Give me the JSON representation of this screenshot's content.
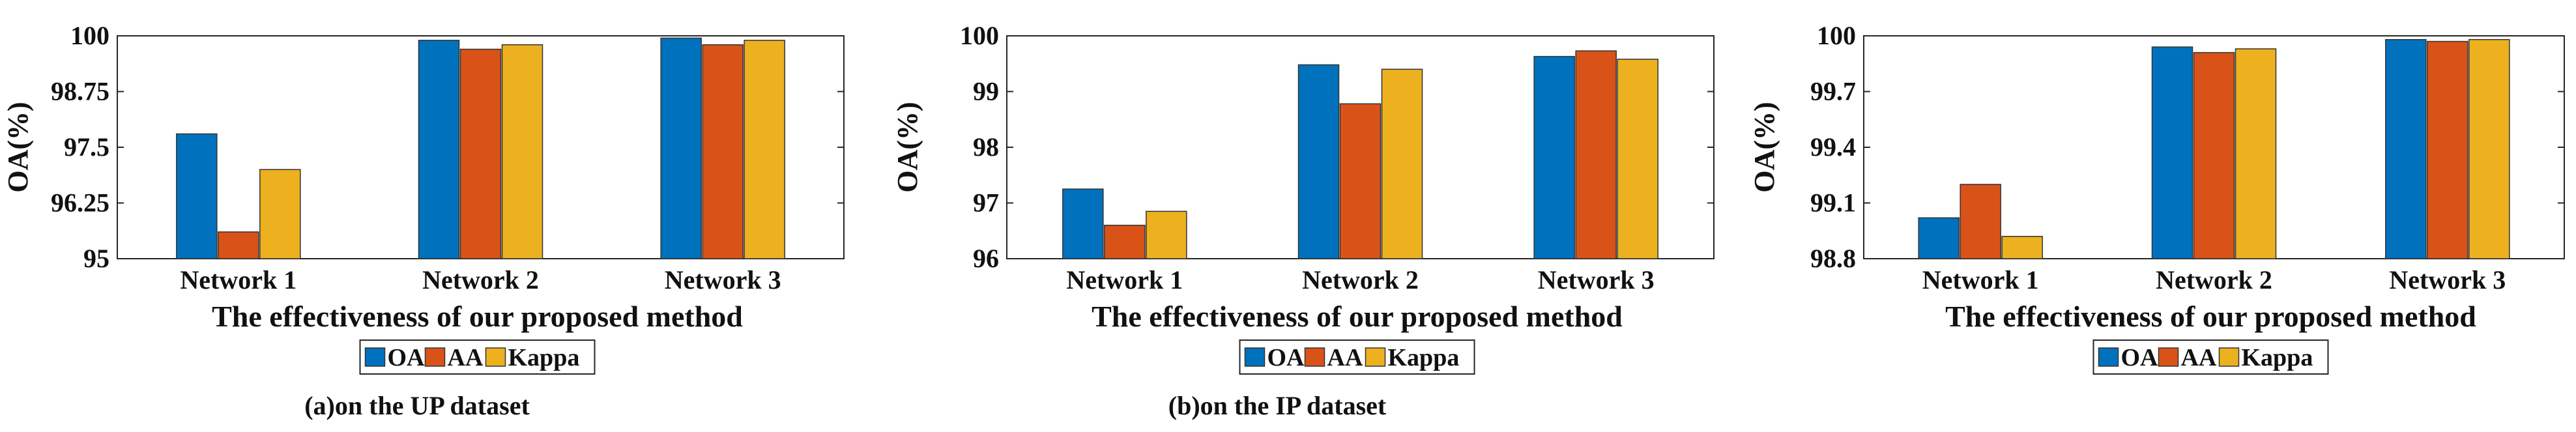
{
  "chart_data": [
    {
      "type": "bar",
      "categories": [
        "Network 1",
        "Network 2",
        "Network 3"
      ],
      "series": [
        {
          "name": "OA",
          "values": [
            97.8,
            99.9,
            99.95
          ]
        },
        {
          "name": "AA",
          "values": [
            95.6,
            99.7,
            99.8
          ]
        },
        {
          "name": "Kappa",
          "values": [
            97.0,
            99.8,
            99.9
          ]
        }
      ],
      "colors": [
        "#0072BD",
        "#D95319",
        "#EDB120"
      ],
      "ylim": [
        95,
        100
      ],
      "yticks": [
        "95",
        "96.25",
        "97.5",
        "98.75",
        "100"
      ],
      "ylabel": "OA(%)",
      "xlabel": "The effectiveness of our proposed method",
      "caption": "(a)on the UP dataset",
      "legend_position": "bottom"
    },
    {
      "type": "bar",
      "categories": [
        "Network 1",
        "Network 2",
        "Network 3"
      ],
      "series": [
        {
          "name": "OA",
          "values": [
            97.25,
            99.48,
            99.63
          ]
        },
        {
          "name": "AA",
          "values": [
            96.6,
            98.78,
            99.73
          ]
        },
        {
          "name": "Kappa",
          "values": [
            96.85,
            99.4,
            99.58
          ]
        }
      ],
      "colors": [
        "#0072BD",
        "#D95319",
        "#EDB120"
      ],
      "ylim": [
        96,
        100
      ],
      "yticks": [
        "96",
        "97",
        "98",
        "99",
        "100"
      ],
      "ylabel": "OA(%)",
      "xlabel": "The effectiveness of our proposed method",
      "caption": "(b)on the IP dataset",
      "legend_position": "bottom"
    },
    {
      "type": "bar",
      "categories": [
        "Network 1",
        "Network 2",
        "Network 3"
      ],
      "series": [
        {
          "name": "OA",
          "values": [
            99.02,
            99.94,
            99.98
          ]
        },
        {
          "name": "AA",
          "values": [
            99.2,
            99.91,
            99.97
          ]
        },
        {
          "name": "Kappa",
          "values": [
            98.92,
            99.93,
            99.98
          ]
        }
      ],
      "colors": [
        "#0072BD",
        "#D95319",
        "#EDB120"
      ],
      "ylim": [
        98.8,
        100
      ],
      "yticks": [
        "98.8",
        "99.1",
        "99.4",
        "99.7",
        "100"
      ],
      "ylabel": "OA(%)",
      "xlabel": "The effectiveness of our proposed method",
      "caption": "",
      "legend_position": "bottom"
    }
  ]
}
